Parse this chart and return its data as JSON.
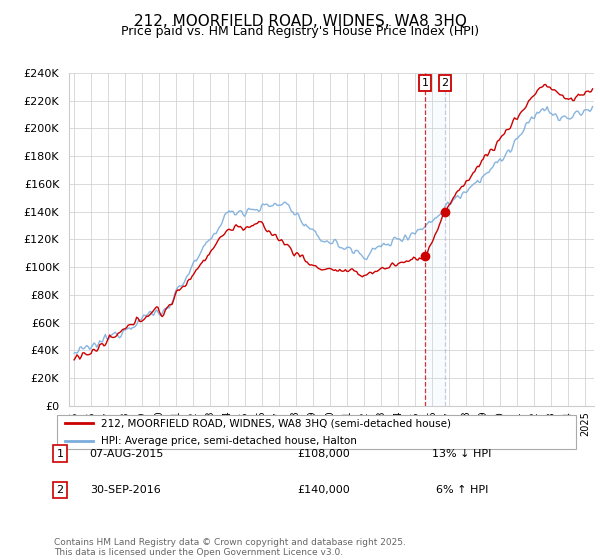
{
  "title": "212, MOORFIELD ROAD, WIDNES, WA8 3HQ",
  "subtitle": "Price paid vs. HM Land Registry's House Price Index (HPI)",
  "legend_line1": "212, MOORFIELD ROAD, WIDNES, WA8 3HQ (semi-detached house)",
  "legend_line2": "HPI: Average price, semi-detached house, Halton",
  "sale1_date": "07-AUG-2015",
  "sale1_price": 108000,
  "sale1_pct": "13% ↓ HPI",
  "sale2_date": "30-SEP-2016",
  "sale2_price": 140000,
  "sale2_pct": "6% ↑ HPI",
  "footer": "Contains HM Land Registry data © Crown copyright and database right 2025.\nThis data is licensed under the Open Government Licence v3.0.",
  "ylim": [
    0,
    240000
  ],
  "ytick_step": 20000,
  "red_color": "#cc0000",
  "blue_color": "#7aaddc",
  "shade_color": "#ddeeff",
  "x_start_year": 1995,
  "x_end_year": 2025
}
